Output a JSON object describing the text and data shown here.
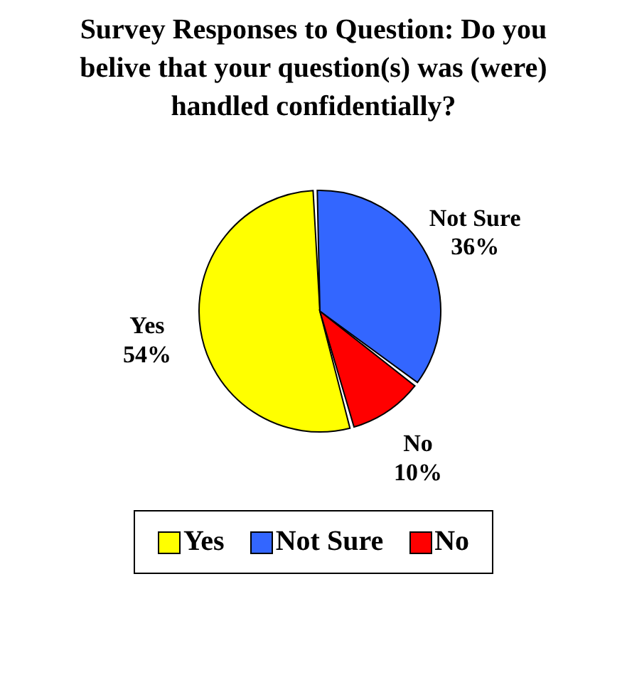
{
  "chart_data": {
    "type": "pie",
    "title": "Survey Responses to Question: Do you belive that your question(s) was (were) handled confidentially?",
    "categories": [
      "Yes",
      "Not Sure",
      "No"
    ],
    "values": [
      54,
      36,
      10
    ],
    "colors": [
      "#ffff00",
      "#3366ff",
      "#ff0000"
    ],
    "value_labels": [
      "54%",
      "36%",
      "10%"
    ],
    "legend": "bottom"
  }
}
